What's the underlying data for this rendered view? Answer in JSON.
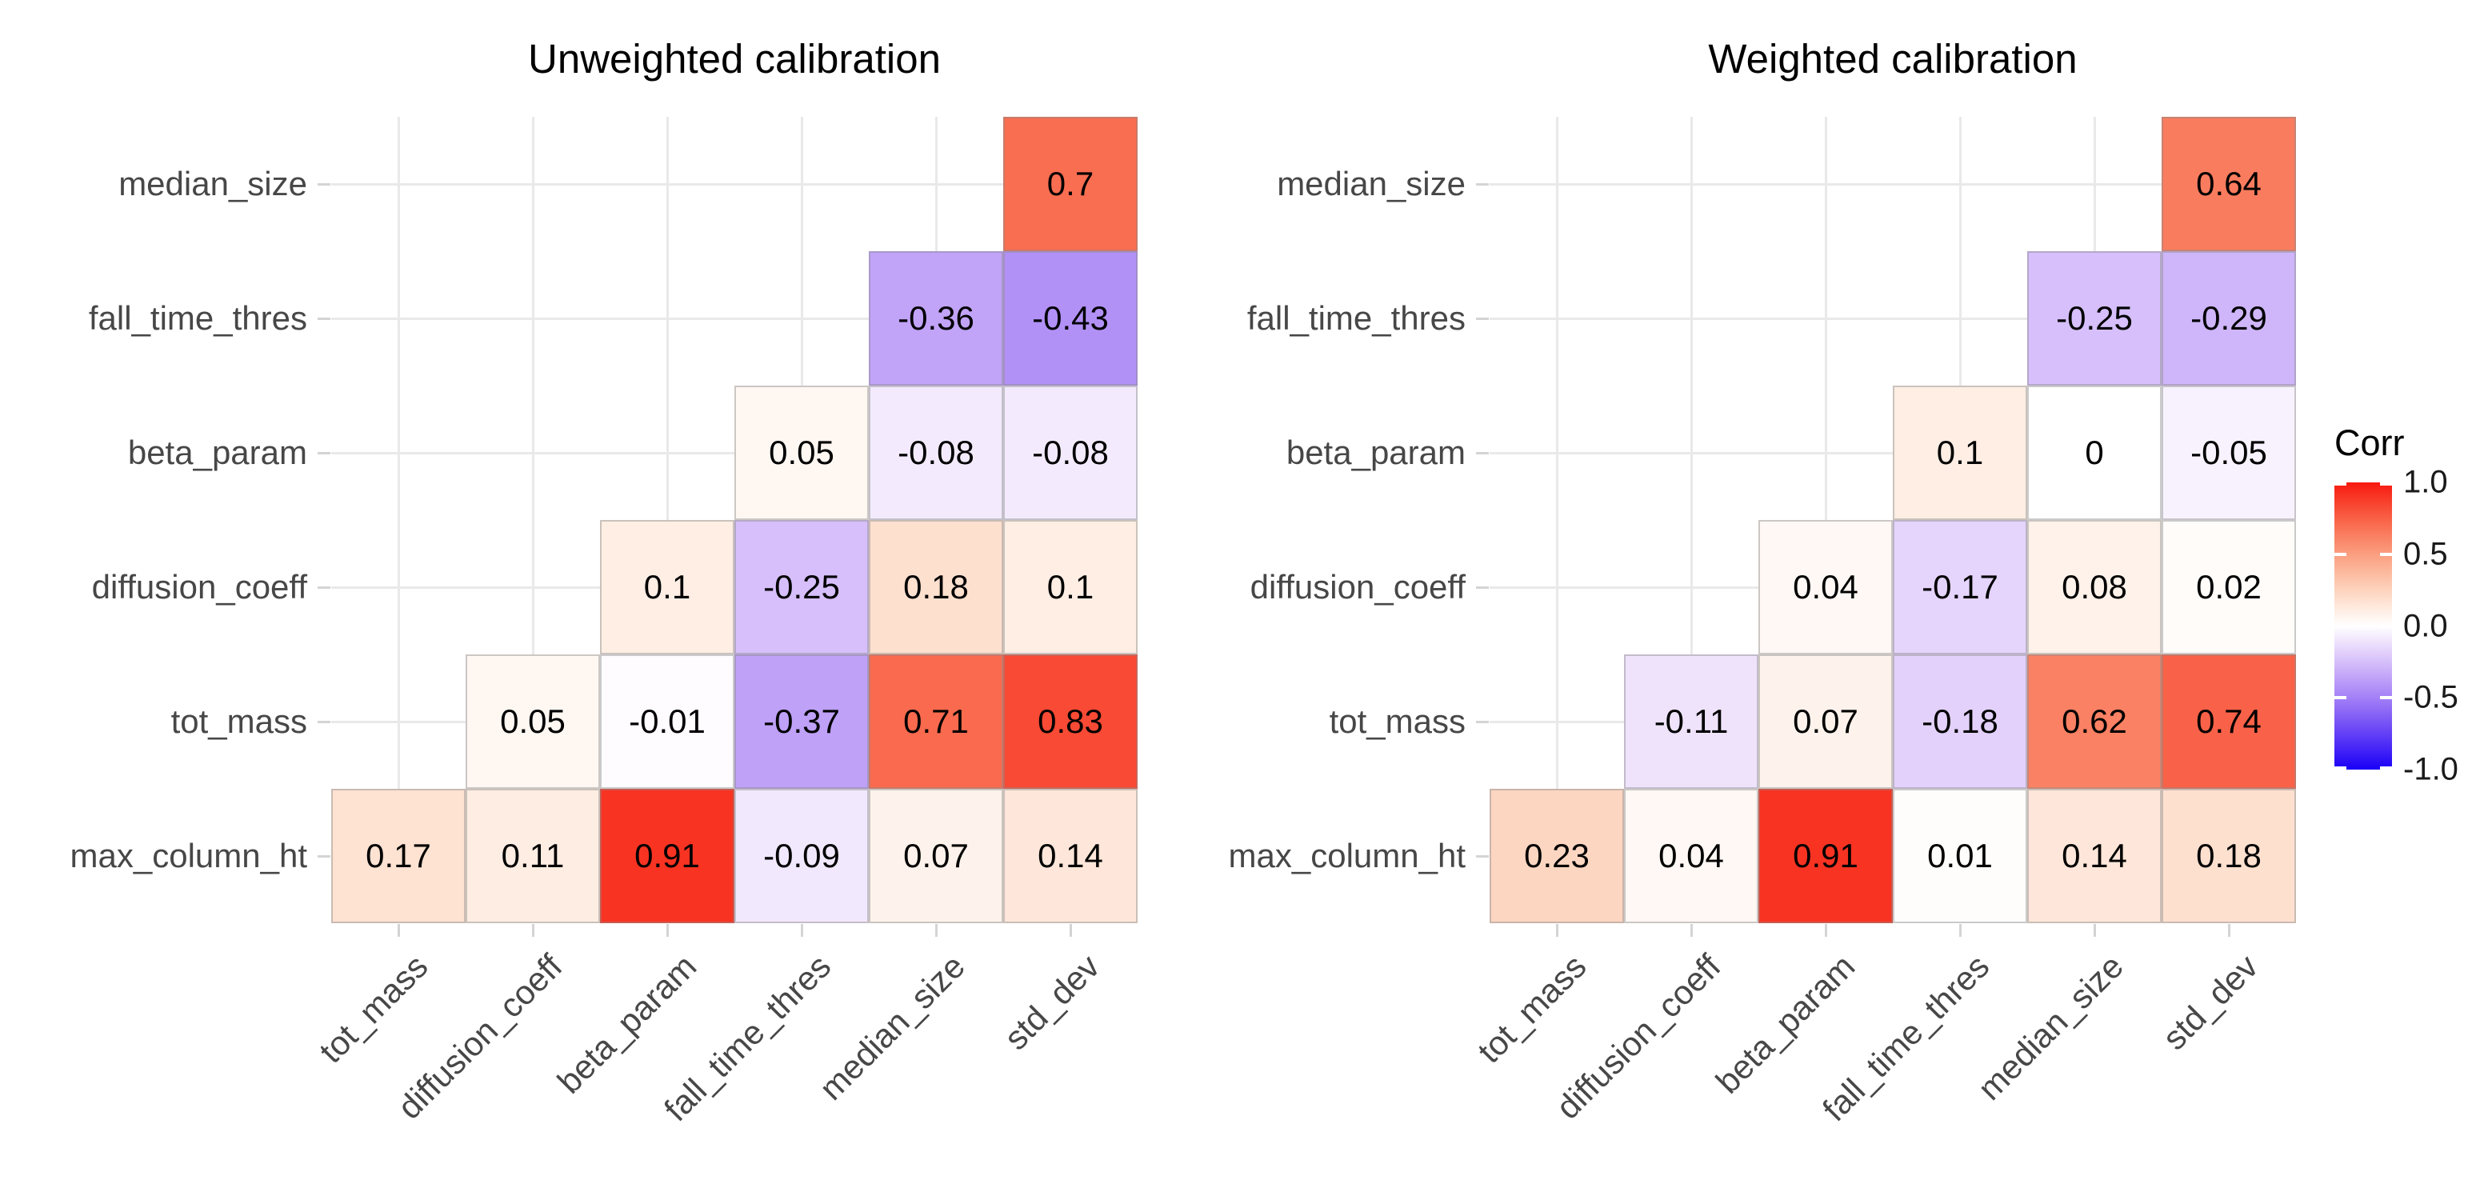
{
  "figure": {
    "background": "#FFFFFF"
  },
  "chart_data": [
    {
      "type": "heatmap",
      "title": "Unweighted calibration",
      "x_categories": [
        "tot_mass",
        "diffusion_coeff",
        "beta_param",
        "fall_time_thres",
        "median_size",
        "std_dev"
      ],
      "y_categories": [
        "median_size",
        "fall_time_thres",
        "beta_param",
        "diffusion_coeff",
        "tot_mass",
        "max_column_ht"
      ],
      "values": [
        [
          null,
          null,
          null,
          null,
          null,
          0.7
        ],
        [
          null,
          null,
          null,
          null,
          -0.36,
          -0.43
        ],
        [
          null,
          null,
          null,
          0.05,
          -0.08,
          -0.08
        ],
        [
          null,
          null,
          0.1,
          -0.25,
          0.18,
          0.1
        ],
        [
          null,
          0.05,
          -0.01,
          -0.37,
          0.71,
          0.83
        ],
        [
          0.17,
          0.11,
          0.91,
          -0.09,
          0.07,
          0.14
        ]
      ],
      "value_labels": [
        [
          null,
          null,
          null,
          null,
          null,
          "0.7"
        ],
        [
          null,
          null,
          null,
          null,
          "-0.36",
          "-0.43"
        ],
        [
          null,
          null,
          null,
          "0.05",
          "-0.08",
          "-0.08"
        ],
        [
          null,
          null,
          "0.1",
          "-0.25",
          "0.18",
          "0.1"
        ],
        [
          null,
          "0.05",
          "-0.01",
          "-0.37",
          "0.71",
          "0.83"
        ],
        [
          "0.17",
          "0.11",
          "0.91",
          "-0.09",
          "0.07",
          "0.14"
        ]
      ],
      "grid": true,
      "color_limits": [
        -1,
        1
      ]
    },
    {
      "type": "heatmap",
      "title": "Weighted calibration",
      "x_categories": [
        "tot_mass",
        "diffusion_coeff",
        "beta_param",
        "fall_time_thres",
        "median_size",
        "std_dev"
      ],
      "y_categories": [
        "median_size",
        "fall_time_thres",
        "beta_param",
        "diffusion_coeff",
        "tot_mass",
        "max_column_ht"
      ],
      "values": [
        [
          null,
          null,
          null,
          null,
          null,
          0.64
        ],
        [
          null,
          null,
          null,
          null,
          -0.25,
          -0.29
        ],
        [
          null,
          null,
          null,
          0.1,
          0,
          -0.05
        ],
        [
          null,
          null,
          0.04,
          -0.17,
          0.08,
          0.02
        ],
        [
          null,
          -0.11,
          0.07,
          -0.18,
          0.62,
          0.74
        ],
        [
          0.23,
          0.04,
          0.91,
          0.01,
          0.14,
          0.18
        ]
      ],
      "value_labels": [
        [
          null,
          null,
          null,
          null,
          null,
          "0.64"
        ],
        [
          null,
          null,
          null,
          null,
          "-0.25",
          "-0.29"
        ],
        [
          null,
          null,
          null,
          "0.1",
          "0",
          "-0.05"
        ],
        [
          null,
          null,
          "0.04",
          "-0.17",
          "0.08",
          "0.02"
        ],
        [
          null,
          "-0.11",
          "0.07",
          "-0.18",
          "0.62",
          "0.74"
        ],
        [
          "0.23",
          "0.04",
          "0.91",
          "0.01",
          "0.14",
          "0.18"
        ]
      ],
      "grid": true,
      "color_limits": [
        -1,
        1
      ]
    }
  ],
  "legend": {
    "title": "Corr",
    "tick_labels": [
      "1.0",
      "0.5",
      "0.0",
      "-0.5",
      "-1.0"
    ],
    "high_color": "#F7190F",
    "mid_color": "#FFFFFF",
    "low_color": "#1900F7"
  },
  "style": {
    "grid_color": "#E9E9E9",
    "tick_color": "#D4D4D4",
    "axis_text_color": "#474747",
    "title_color": "#000000",
    "cell_text_color": "#000000",
    "cell_border_color": "rgba(140,140,140,0.45)"
  }
}
